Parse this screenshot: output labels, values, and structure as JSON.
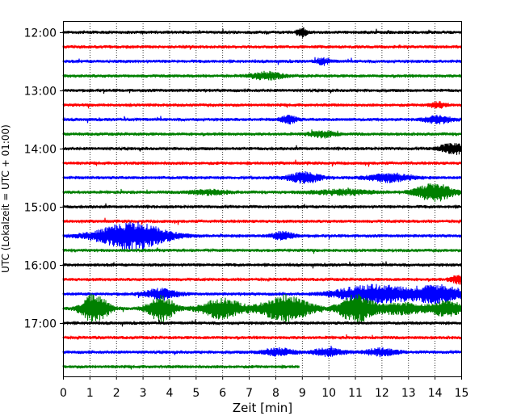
{
  "chart_data": {
    "type": "line",
    "title": "",
    "xlabel": "Zeit  [min]",
    "ylabel": "UTC (Lokalzeit = UTC + 01:00)",
    "xlim": [
      0,
      15
    ],
    "xticks": [
      0,
      1,
      2,
      3,
      4,
      5,
      6,
      7,
      8,
      9,
      10,
      11,
      12,
      13,
      14,
      15
    ],
    "grid": "vertical dotted",
    "y_tick_labels": [
      "12:00",
      "13:00",
      "14:00",
      "15:00",
      "16:00",
      "17:00"
    ],
    "trace_interval_minutes": 15,
    "trace_colors": [
      "#000000",
      "#ff0000",
      "#0000ff",
      "#008000"
    ],
    "series": [
      {
        "start": "12:00",
        "end_min": 15,
        "events": [
          {
            "t": 9.0,
            "a": 0.35,
            "d": 0.2
          }
        ]
      },
      {
        "start": "12:15",
        "end_min": 15,
        "events": []
      },
      {
        "start": "12:30",
        "end_min": 15,
        "events": [
          {
            "t": 9.8,
            "a": 0.25,
            "d": 0.3
          }
        ]
      },
      {
        "start": "12:45",
        "end_min": 15,
        "events": [
          {
            "t": 7.7,
            "a": 0.3,
            "d": 0.6
          }
        ]
      },
      {
        "start": "13:00",
        "end_min": 15,
        "events": []
      },
      {
        "start": "13:15",
        "end_min": 15,
        "events": [
          {
            "t": 14.1,
            "a": 0.25,
            "d": 0.3
          }
        ]
      },
      {
        "start": "13:30",
        "end_min": 15,
        "events": [
          {
            "t": 8.5,
            "a": 0.35,
            "d": 0.3
          },
          {
            "t": 14.1,
            "a": 0.35,
            "d": 0.5
          }
        ]
      },
      {
        "start": "13:45",
        "end_min": 15,
        "events": [
          {
            "t": 9.8,
            "a": 0.25,
            "d": 0.5
          }
        ]
      },
      {
        "start": "14:00",
        "end_min": 15,
        "events": [
          {
            "t": 14.7,
            "a": 0.45,
            "d": 0.5
          }
        ]
      },
      {
        "start": "14:15",
        "end_min": 15,
        "events": []
      },
      {
        "start": "14:30",
        "end_min": 15,
        "events": [
          {
            "t": 9.1,
            "a": 0.45,
            "d": 0.6
          },
          {
            "t": 12.3,
            "a": 0.35,
            "d": 0.8
          }
        ]
      },
      {
        "start": "14:45",
        "end_min": 15,
        "events": [
          {
            "t": 14.0,
            "a": 0.75,
            "d": 0.7
          },
          {
            "t": 5.5,
            "a": 0.2,
            "d": 0.7
          },
          {
            "t": 10.5,
            "a": 0.2,
            "d": 1.2
          }
        ]
      },
      {
        "start": "15:00",
        "end_min": 15,
        "events": []
      },
      {
        "start": "15:15",
        "end_min": 15,
        "events": []
      },
      {
        "start": "15:30",
        "end_min": 15,
        "events": [
          {
            "t": 2.6,
            "a": 1.15,
            "d": 1.3
          },
          {
            "t": 8.3,
            "a": 0.35,
            "d": 0.4
          }
        ]
      },
      {
        "start": "15:45",
        "end_min": 15,
        "events": []
      },
      {
        "start": "16:00",
        "end_min": 15,
        "events": []
      },
      {
        "start": "16:15",
        "end_min": 15,
        "events": [
          {
            "t": 14.9,
            "a": 0.35,
            "d": 0.3
          }
        ]
      },
      {
        "start": "16:30",
        "end_min": 15,
        "events": [
          {
            "t": 3.7,
            "a": 0.45,
            "d": 0.6
          },
          {
            "t": 11.0,
            "a": 0.45,
            "d": 1.0
          },
          {
            "t": 12.2,
            "a": 0.6,
            "d": 1.0
          },
          {
            "t": 14.1,
            "a": 0.75,
            "d": 1.0
          }
        ]
      },
      {
        "start": "16:45",
        "end_min": 15,
        "events": [
          {
            "t": 1.2,
            "a": 1.3,
            "d": 0.5
          },
          {
            "t": 3.7,
            "a": 1.1,
            "d": 0.5
          },
          {
            "t": 6.0,
            "a": 0.85,
            "d": 0.8
          },
          {
            "t": 8.4,
            "a": 1.15,
            "d": 0.9
          },
          {
            "t": 11.0,
            "a": 1.15,
            "d": 0.6
          },
          {
            "t": 12.6,
            "a": 0.5,
            "d": 1.2
          },
          {
            "t": 14.5,
            "a": 0.6,
            "d": 0.6
          }
        ]
      },
      {
        "start": "17:00",
        "end_min": 15,
        "events": []
      },
      {
        "start": "17:15",
        "end_min": 15,
        "events": []
      },
      {
        "start": "17:30",
        "end_min": 15,
        "events": [
          {
            "t": 8.1,
            "a": 0.3,
            "d": 0.6
          },
          {
            "t": 10.0,
            "a": 0.3,
            "d": 0.6
          },
          {
            "t": 12.0,
            "a": 0.3,
            "d": 0.6
          }
        ]
      },
      {
        "start": "17:45",
        "end_min": 8.9,
        "events": []
      }
    ]
  }
}
